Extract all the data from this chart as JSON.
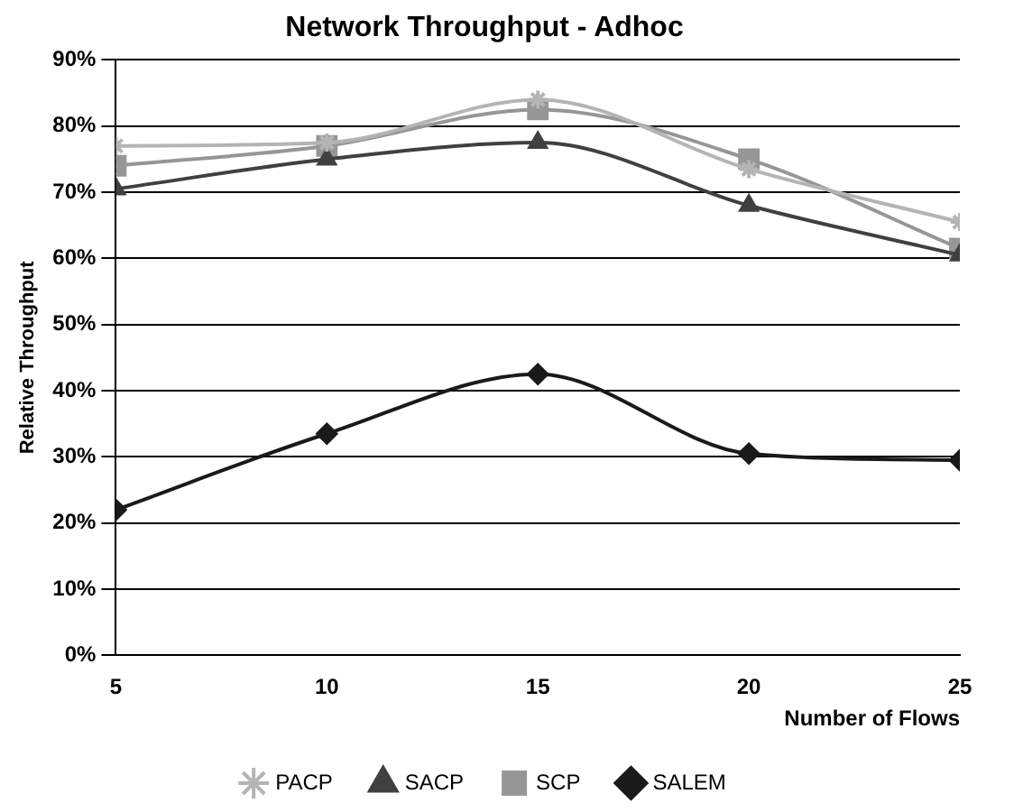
{
  "chart_data": {
    "type": "line",
    "title": "Network Throughput - Adhoc",
    "xlabel": "Number of Flows",
    "ylabel": "Relative Throughput",
    "x": [
      5,
      10,
      15,
      20,
      25
    ],
    "xlim": [
      5,
      25
    ],
    "xticks": [
      5,
      10,
      15,
      20,
      25
    ],
    "ylim": [
      0,
      90
    ],
    "yticks": [
      {
        "value": 0,
        "label": "0%"
      },
      {
        "value": 10,
        "label": "10%"
      },
      {
        "value": 20,
        "label": "20%"
      },
      {
        "value": 30,
        "label": "30%"
      },
      {
        "value": 40,
        "label": "40%"
      },
      {
        "value": 50,
        "label": "50%"
      },
      {
        "value": 60,
        "label": "60%"
      },
      {
        "value": 70,
        "label": "70%"
      },
      {
        "value": 80,
        "label": "80%"
      },
      {
        "value": 90,
        "label": "90%"
      }
    ],
    "grid": "y",
    "legend": "bottom",
    "line_style": "solid",
    "series": [
      {
        "name": "PACP",
        "color": "#b4b4b4",
        "marker": "cross",
        "values": [
          77,
          77.5,
          84,
          73.5,
          65.5
        ]
      },
      {
        "name": "SACP",
        "color": "#404040",
        "marker": "triangle",
        "values": [
          70.5,
          75,
          77.5,
          68,
          60.5
        ]
      },
      {
        "name": "SCP",
        "color": "#969696",
        "marker": "square",
        "values": [
          74,
          77,
          82.5,
          75,
          61.5
        ]
      },
      {
        "name": "SALEM",
        "color": "#1a1a1a",
        "marker": "diamond",
        "values": [
          22,
          33.5,
          42.5,
          30.5,
          29.5
        ]
      }
    ]
  }
}
